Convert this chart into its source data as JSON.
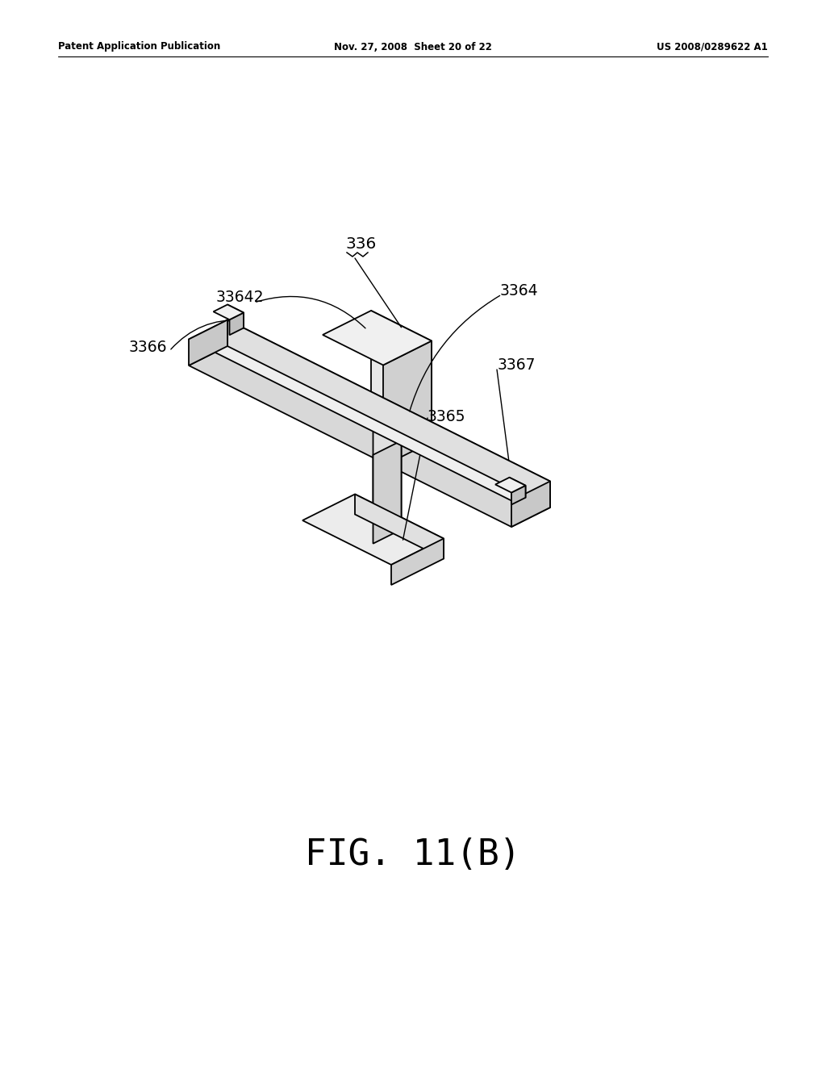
{
  "bg_color": "#ffffff",
  "line_color": "#000000",
  "header_left": "Patent Application Publication",
  "header_mid": "Nov. 27, 2008  Sheet 20 of 22",
  "header_right": "US 2008/0289622 A1",
  "fig_label": "FIG. 11(B)"
}
